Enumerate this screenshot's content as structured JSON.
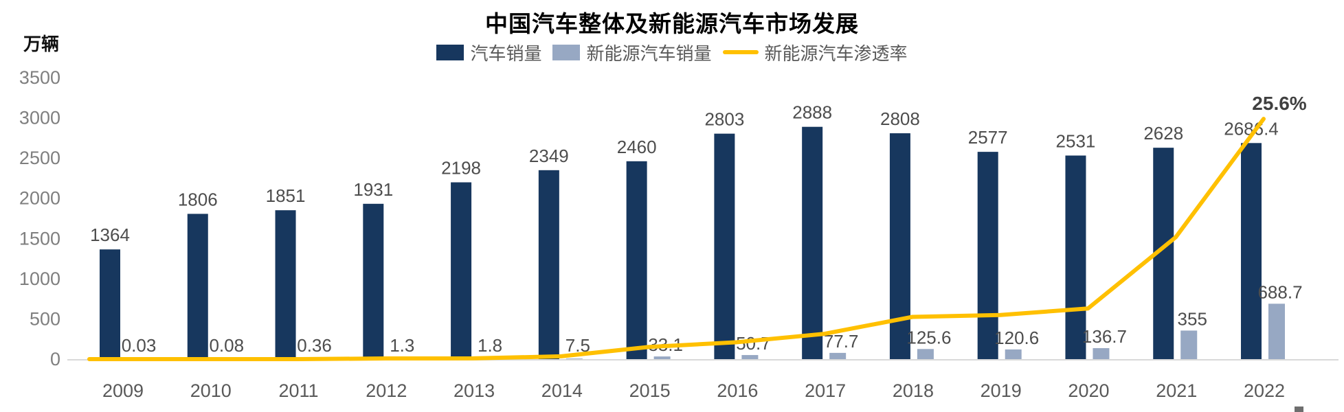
{
  "chart_data": {
    "type": "bar",
    "title": "中国汽车整体及新能源汽车市场发展",
    "unit_label": "万辆",
    "categories": [
      "2009",
      "2010",
      "2011",
      "2012",
      "2013",
      "2014",
      "2015",
      "2016",
      "2017",
      "2018",
      "2019",
      "2020",
      "2021",
      "2022"
    ],
    "series": [
      {
        "name": "汽车销量",
        "kind": "bar",
        "color": "#17375E",
        "values": [
          1364,
          1806,
          1851,
          1931,
          2198,
          2349,
          2460,
          2803,
          2888,
          2808,
          2577,
          2531,
          2628,
          2686.4
        ]
      },
      {
        "name": "新能源汽车销量",
        "kind": "bar",
        "color": "#97A8C3",
        "values": [
          0.03,
          0.08,
          0.36,
          1.3,
          1.8,
          7.5,
          33.1,
          50.7,
          77.7,
          125.6,
          120.6,
          136.7,
          355,
          688.7
        ]
      },
      {
        "name": "新能源汽车渗透率",
        "kind": "line",
        "color": "#FFC000",
        "axis": "secondary",
        "values": [
          0,
          0,
          0,
          0.07,
          0.08,
          0.3,
          1.3,
          1.8,
          2.7,
          4.5,
          4.7,
          5.4,
          13,
          25.6
        ],
        "end_label": "25.6%"
      }
    ],
    "ylim": [
      0,
      3500
    ],
    "yticks": [
      0,
      500,
      1000,
      1500,
      2000,
      2500,
      3000,
      3500
    ],
    "y2lim": [
      0,
      30
    ],
    "grid": false,
    "legend_position": "top-center",
    "colors": {
      "value_label": "#4D4D4D",
      "tick_label": "#7F7F7F",
      "axis_line": "#D9D9D9",
      "end_label": "#404040"
    }
  }
}
